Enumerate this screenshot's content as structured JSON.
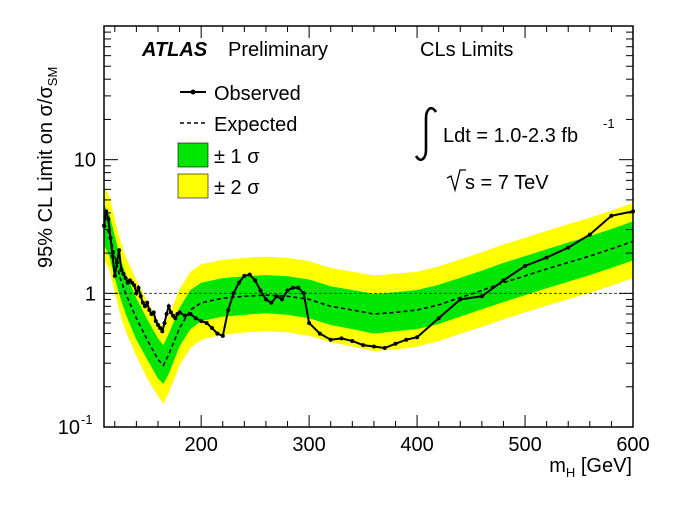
{
  "chart_data": {
    "type": "line",
    "title": "CLs Limits",
    "experiment": "ATLAS",
    "status": "Preliminary",
    "xlabel": "m",
    "xlabel_sub": "H",
    "xlabel_unit": "[GeV]",
    "ylabel": "95% CL Limit on σ/σ",
    "ylabel_sub": "SM",
    "xlim": [
      110,
      600
    ],
    "ylim": [
      0.1,
      100
    ],
    "yscale": "log",
    "x_ticks": [
      200,
      300,
      400,
      500,
      600
    ],
    "y_ticks": [
      {
        "value": 0.1,
        "base": "10",
        "exp": "-1"
      },
      {
        "value": 1,
        "base": "1",
        "exp": ""
      },
      {
        "value": 10,
        "base": "10",
        "exp": ""
      }
    ],
    "reference_line": 1,
    "annotation_lumi": {
      "text": "Ldt = 1.0-2.3 fb",
      "exp": "-1"
    },
    "annotation_energy": {
      "text": "s = 7 TeV"
    },
    "legend": {
      "position": "top-left",
      "observed": "Observed",
      "expected": "Expected",
      "band1": "± 1 σ",
      "band2": "± 2 σ"
    },
    "colors": {
      "band1": "#00e600",
      "band2": "#ffff00",
      "observed": "#000000",
      "expected": "#000000"
    },
    "mass": [
      110,
      115,
      120,
      125,
      130,
      140,
      150,
      160,
      165,
      170,
      180,
      190,
      200,
      220,
      240,
      260,
      280,
      300,
      320,
      340,
      360,
      380,
      400,
      420,
      440,
      460,
      480,
      500,
      520,
      540,
      560,
      580,
      600
    ],
    "expected": [
      3.3,
      2.8,
      1.9,
      1.3,
      1.0,
      0.65,
      0.45,
      0.32,
      0.29,
      0.35,
      0.55,
      0.75,
      0.85,
      0.92,
      0.95,
      0.97,
      0.95,
      0.9,
      0.8,
      0.75,
      0.7,
      0.72,
      0.75,
      0.82,
      0.93,
      1.05,
      1.2,
      1.35,
      1.52,
      1.7,
      1.9,
      2.15,
      2.45
    ],
    "band1_low": [
      2.3,
      1.9,
      1.3,
      0.93,
      0.7,
      0.45,
      0.32,
      0.23,
      0.21,
      0.25,
      0.4,
      0.54,
      0.62,
      0.67,
      0.69,
      0.71,
      0.69,
      0.65,
      0.58,
      0.54,
      0.5,
      0.52,
      0.54,
      0.59,
      0.67,
      0.76,
      0.86,
      0.97,
      1.09,
      1.22,
      1.37,
      1.55,
      1.76
    ],
    "band1_high": [
      4.6,
      3.9,
      2.7,
      1.83,
      1.4,
      0.92,
      0.64,
      0.46,
      0.41,
      0.5,
      0.78,
      1.06,
      1.2,
      1.3,
      1.34,
      1.37,
      1.34,
      1.27,
      1.13,
      1.06,
      0.99,
      1.02,
      1.06,
      1.16,
      1.31,
      1.48,
      1.69,
      1.9,
      2.14,
      2.4,
      2.68,
      3.03,
      3.45
    ],
    "band2_low": [
      1.8,
      1.5,
      1.0,
      0.7,
      0.52,
      0.34,
      0.23,
      0.17,
      0.15,
      0.18,
      0.29,
      0.39,
      0.45,
      0.49,
      0.51,
      0.52,
      0.51,
      0.48,
      0.43,
      0.4,
      0.37,
      0.38,
      0.4,
      0.44,
      0.5,
      0.56,
      0.64,
      0.72,
      0.81,
      0.9,
      1.01,
      1.14,
      1.3
    ],
    "band2_high": [
      6.3,
      5.3,
      3.6,
      2.5,
      1.9,
      1.25,
      0.87,
      0.62,
      0.56,
      0.68,
      1.07,
      1.45,
      1.65,
      1.78,
      1.84,
      1.88,
      1.84,
      1.74,
      1.55,
      1.45,
      1.36,
      1.4,
      1.45,
      1.59,
      1.79,
      2.03,
      2.32,
      2.6,
      2.93,
      3.29,
      3.68,
      4.16,
      4.73
    ],
    "observed": {
      "x": [
        110,
        112,
        114,
        116,
        118,
        120,
        122,
        124,
        126,
        128,
        130,
        132,
        134,
        136,
        138,
        140,
        142,
        144,
        146,
        148,
        150,
        152,
        154,
        156,
        158,
        160,
        162,
        164,
        166,
        168,
        170,
        172,
        174,
        176,
        178,
        180,
        185,
        190,
        195,
        200,
        205,
        210,
        215,
        220,
        225,
        230,
        235,
        240,
        245,
        250,
        255,
        260,
        265,
        270,
        275,
        280,
        285,
        290,
        295,
        300,
        310,
        320,
        330,
        340,
        350,
        360,
        370,
        380,
        390,
        400,
        420,
        440,
        460,
        480,
        500,
        520,
        540,
        560,
        580,
        600
      ],
      "y": [
        3.2,
        4.1,
        3.6,
        2.6,
        1.9,
        1.35,
        1.7,
        2.1,
        1.5,
        1.4,
        1.3,
        1.2,
        1.25,
        1.2,
        1.15,
        1.0,
        1.1,
        0.95,
        0.85,
        0.8,
        0.85,
        0.75,
        0.7,
        0.72,
        0.62,
        0.58,
        0.55,
        0.52,
        0.6,
        0.7,
        0.8,
        0.72,
        0.68,
        0.65,
        0.7,
        0.72,
        0.68,
        0.7,
        0.65,
        0.62,
        0.6,
        0.55,
        0.5,
        0.48,
        0.75,
        1.0,
        1.2,
        1.35,
        1.38,
        1.25,
        1.05,
        0.9,
        0.85,
        0.95,
        0.9,
        1.05,
        1.1,
        1.1,
        1.0,
        0.6,
        0.5,
        0.45,
        0.46,
        0.44,
        0.41,
        0.4,
        0.39,
        0.42,
        0.45,
        0.47,
        0.65,
        0.9,
        0.95,
        1.25,
        1.6,
        1.85,
        2.2,
        2.75,
        3.8,
        4.1
      ]
    }
  }
}
